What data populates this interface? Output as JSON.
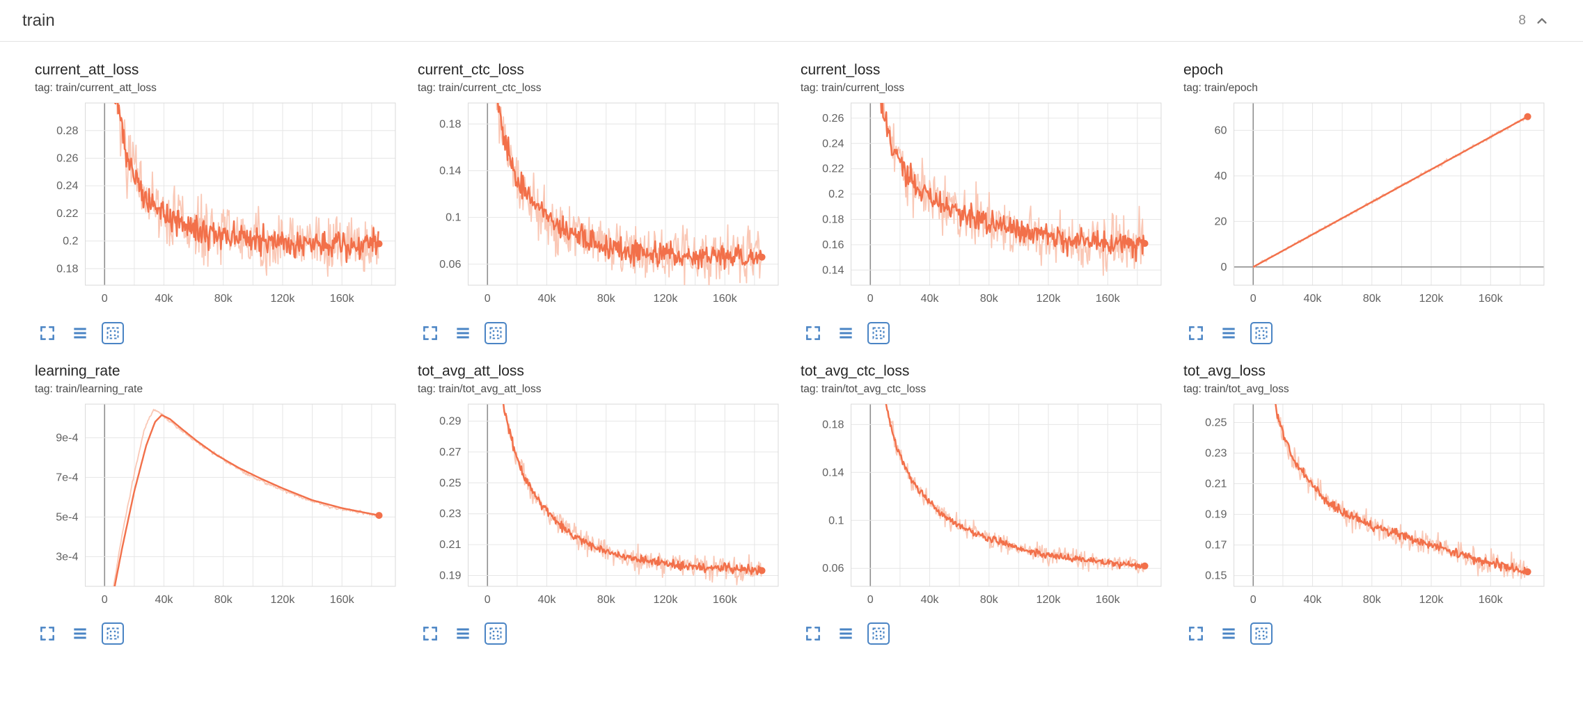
{
  "header": {
    "title": "train",
    "count": "8"
  },
  "colors": {
    "line": "#f2704a",
    "raw": "#f9c2ae",
    "axis_text": "#616161",
    "grid": "#e6e6e6",
    "axis_line": "#8f8f8f",
    "plot_border": "#dadada",
    "icon_blue": "#4a84c4",
    "chevron_gray": "#757575"
  },
  "toolbar_icons": [
    {
      "name": "maximize-icon",
      "active": false
    },
    {
      "name": "data-table-icon",
      "active": false
    },
    {
      "name": "fit-domain-icon",
      "active": true
    }
  ],
  "chart_data": [
    {
      "type": "line",
      "title": "current_att_loss",
      "tag": "tag: train/current_att_loss",
      "xlim": [
        -13000,
        196000
      ],
      "xgrid_step": 20000,
      "xticks": [
        0,
        40000,
        80000,
        120000,
        160000
      ],
      "xtick_labels": [
        "0",
        "40k",
        "80k",
        "120k",
        "160k"
      ],
      "ylim": [
        0.168,
        0.3
      ],
      "yticks": [
        0.18,
        0.2,
        0.22,
        0.24,
        0.26,
        0.28
      ],
      "ytick_labels": [
        "0.18",
        "0.2",
        "0.22",
        "0.24",
        "0.26",
        "0.28"
      ],
      "x_start": 2500,
      "x_end": 185000,
      "trend": [
        [
          3000,
          0.34
        ],
        [
          8000,
          0.3
        ],
        [
          15000,
          0.26
        ],
        [
          25000,
          0.235
        ],
        [
          40000,
          0.218
        ],
        [
          60000,
          0.208
        ],
        [
          90000,
          0.202
        ],
        [
          130000,
          0.199
        ],
        [
          185000,
          0.198
        ]
      ],
      "raw_noise": 0.012,
      "smooth_noise": 0.005,
      "seed": 7,
      "end_dot": true
    },
    {
      "type": "line",
      "title": "current_ctc_loss",
      "tag": "tag: train/current_ctc_loss",
      "xlim": [
        -13000,
        196000
      ],
      "xgrid_step": 20000,
      "xticks": [
        0,
        40000,
        80000,
        120000,
        160000
      ],
      "xtick_labels": [
        "0",
        "40k",
        "80k",
        "120k",
        "160k"
      ],
      "ylim": [
        0.042,
        0.198
      ],
      "yticks": [
        0.06,
        0.1,
        0.14,
        0.18
      ],
      "ytick_labels": [
        "0.06",
        "0.1",
        "0.14",
        "0.18"
      ],
      "x_start": 2500,
      "x_end": 185000,
      "trend": [
        [
          3000,
          0.26
        ],
        [
          8000,
          0.185
        ],
        [
          15000,
          0.15
        ],
        [
          20000,
          0.13
        ],
        [
          30000,
          0.115
        ],
        [
          40000,
          0.1
        ],
        [
          50000,
          0.09
        ],
        [
          60000,
          0.085
        ],
        [
          80000,
          0.075
        ],
        [
          100000,
          0.071
        ],
        [
          130000,
          0.068
        ],
        [
          185000,
          0.066
        ]
      ],
      "raw_noise": 0.011,
      "smooth_noise": 0.005,
      "seed": 13,
      "end_dot": true
    },
    {
      "type": "line",
      "title": "current_loss",
      "tag": "tag: train/current_loss",
      "xlim": [
        -13000,
        196000
      ],
      "xgrid_step": 20000,
      "xticks": [
        0,
        40000,
        80000,
        120000,
        160000
      ],
      "xtick_labels": [
        "0",
        "40k",
        "80k",
        "120k",
        "160k"
      ],
      "ylim": [
        0.128,
        0.272
      ],
      "yticks": [
        0.14,
        0.16,
        0.18,
        0.2,
        0.22,
        0.24,
        0.26
      ],
      "ytick_labels": [
        "0.14",
        "0.16",
        "0.18",
        "0.2",
        "0.22",
        "0.24",
        "0.26"
      ],
      "x_start": 2500,
      "x_end": 185000,
      "trend": [
        [
          3000,
          0.32
        ],
        [
          8000,
          0.27
        ],
        [
          15000,
          0.235
        ],
        [
          25000,
          0.215
        ],
        [
          40000,
          0.198
        ],
        [
          60000,
          0.185
        ],
        [
          80000,
          0.176
        ],
        [
          100000,
          0.17
        ],
        [
          130000,
          0.164
        ],
        [
          160000,
          0.161
        ],
        [
          185000,
          0.161
        ]
      ],
      "raw_noise": 0.011,
      "smooth_noise": 0.005,
      "seed": 21,
      "end_dot": true
    },
    {
      "type": "line",
      "title": "epoch",
      "tag": "tag: train/epoch",
      "xlim": [
        -13000,
        196000
      ],
      "xgrid_step": 20000,
      "xticks": [
        0,
        40000,
        80000,
        120000,
        160000
      ],
      "xtick_labels": [
        "0",
        "40k",
        "80k",
        "120k",
        "160k"
      ],
      "ylim": [
        -8,
        72
      ],
      "yticks": [
        0,
        20,
        40,
        60
      ],
      "ytick_labels": [
        "0",
        "20",
        "40",
        "60"
      ],
      "x_start": 0,
      "x_end": 185000,
      "trend": [
        [
          0,
          0
        ],
        [
          185000,
          66
        ]
      ],
      "raw_noise": 0.4,
      "smooth_noise": 0,
      "seed": 1,
      "end_dot": true
    },
    {
      "type": "line",
      "title": "learning_rate",
      "tag": "tag: train/learning_rate",
      "xlim": [
        -13000,
        196000
      ],
      "xgrid_step": 20000,
      "xticks": [
        0,
        40000,
        80000,
        120000,
        160000
      ],
      "xtick_labels": [
        "0",
        "40k",
        "80k",
        "120k",
        "160k"
      ],
      "ylim": [
        0.00015,
        0.00107
      ],
      "yticks": [
        0.0003,
        0.0005,
        0.0007,
        0.0009
      ],
      "ytick_labels": [
        "3e-4",
        "5e-4",
        "7e-4",
        "9e-4"
      ],
      "x_start": 5000,
      "x_end": 185000,
      "trend": [
        [
          5000,
          8e-05
        ],
        [
          12000,
          0.00035
        ],
        [
          20000,
          0.00063
        ],
        [
          28000,
          0.00086
        ],
        [
          34000,
          0.00098
        ],
        [
          38500,
          0.001015
        ],
        [
          44000,
          0.000995
        ],
        [
          52000,
          0.000945
        ],
        [
          62000,
          0.000885
        ],
        [
          75000,
          0.000815
        ],
        [
          90000,
          0.00075
        ],
        [
          105000,
          0.000695
        ],
        [
          120000,
          0.000645
        ],
        [
          140000,
          0.000585
        ],
        [
          160000,
          0.000545
        ],
        [
          185000,
          0.000508
        ]
      ],
      "raw_trend": [
        [
          5000,
          0.0001
        ],
        [
          12000,
          0.00042
        ],
        [
          20000,
          0.00072
        ],
        [
          27000,
          0.00095
        ],
        [
          33000,
          0.001045
        ],
        [
          38000,
          0.00102
        ],
        [
          46000,
          0.00097
        ],
        [
          60000,
          0.00089
        ],
        [
          80000,
          0.00079
        ],
        [
          100000,
          0.0007
        ],
        [
          125000,
          0.00062
        ],
        [
          150000,
          0.000555
        ],
        [
          185000,
          0.000505
        ]
      ],
      "raw_noise": 4e-06,
      "smooth_noise": 0,
      "seed": 2,
      "end_dot": true
    },
    {
      "type": "line",
      "title": "tot_avg_att_loss",
      "tag": "tag: train/tot_avg_att_loss",
      "xlim": [
        -13000,
        196000
      ],
      "xgrid_step": 20000,
      "xticks": [
        0,
        40000,
        80000,
        120000,
        160000
      ],
      "xtick_labels": [
        "0",
        "40k",
        "80k",
        "120k",
        "160k"
      ],
      "ylim": [
        0.183,
        0.301
      ],
      "yticks": [
        0.19,
        0.21,
        0.23,
        0.25,
        0.27,
        0.29
      ],
      "ytick_labels": [
        "0.19",
        "0.21",
        "0.23",
        "0.25",
        "0.27",
        "0.29"
      ],
      "x_start": 2500,
      "x_end": 185000,
      "trend": [
        [
          3000,
          0.36
        ],
        [
          8000,
          0.315
        ],
        [
          12000,
          0.295
        ],
        [
          18000,
          0.272
        ],
        [
          25000,
          0.254
        ],
        [
          32000,
          0.242
        ],
        [
          40000,
          0.232
        ],
        [
          50000,
          0.222
        ],
        [
          60000,
          0.2145
        ],
        [
          70000,
          0.209
        ],
        [
          80000,
          0.2055
        ],
        [
          95000,
          0.2015
        ],
        [
          110000,
          0.199
        ],
        [
          130000,
          0.1965
        ],
        [
          155000,
          0.1945
        ],
        [
          185000,
          0.1932
        ]
      ],
      "raw_noise": 0.004,
      "smooth_noise": 0.0015,
      "seed": 31,
      "end_dot": true
    },
    {
      "type": "line",
      "title": "tot_avg_ctc_loss",
      "tag": "tag: train/tot_avg_ctc_loss",
      "xlim": [
        -13000,
        196000
      ],
      "xgrid_step": 20000,
      "xticks": [
        0,
        40000,
        80000,
        120000,
        160000
      ],
      "xtick_labels": [
        "0",
        "40k",
        "80k",
        "120k",
        "160k"
      ],
      "ylim": [
        0.045,
        0.197
      ],
      "yticks": [
        0.06,
        0.1,
        0.14,
        0.18
      ],
      "ytick_labels": [
        "0.06",
        "0.1",
        "0.14",
        "0.18"
      ],
      "x_start": 2500,
      "x_end": 185000,
      "trend": [
        [
          3000,
          0.27
        ],
        [
          8000,
          0.215
        ],
        [
          12000,
          0.188
        ],
        [
          18000,
          0.16
        ],
        [
          25000,
          0.14
        ],
        [
          32000,
          0.126
        ],
        [
          40000,
          0.1145
        ],
        [
          50000,
          0.1035
        ],
        [
          60000,
          0.0955
        ],
        [
          70000,
          0.0895
        ],
        [
          80000,
          0.085
        ],
        [
          95000,
          0.0785
        ],
        [
          110000,
          0.0735
        ],
        [
          130000,
          0.0695
        ],
        [
          155000,
          0.0655
        ],
        [
          185000,
          0.062
        ]
      ],
      "raw_noise": 0.004,
      "smooth_noise": 0.0015,
      "seed": 41,
      "end_dot": true
    },
    {
      "type": "line",
      "title": "tot_avg_loss",
      "tag": "tag: train/tot_avg_loss",
      "xlim": [
        -13000,
        196000
      ],
      "xgrid_step": 20000,
      "xticks": [
        0,
        40000,
        80000,
        120000,
        160000
      ],
      "xtick_labels": [
        "0",
        "40k",
        "80k",
        "120k",
        "160k"
      ],
      "ylim": [
        0.143,
        0.262
      ],
      "yticks": [
        0.15,
        0.17,
        0.19,
        0.21,
        0.23,
        0.25
      ],
      "ytick_labels": [
        "0.15",
        "0.17",
        "0.19",
        "0.21",
        "0.23",
        "0.25"
      ],
      "x_start": 2500,
      "x_end": 185000,
      "trend": [
        [
          3000,
          0.33
        ],
        [
          8000,
          0.295
        ],
        [
          12000,
          0.272
        ],
        [
          18000,
          0.249
        ],
        [
          25000,
          0.231
        ],
        [
          32000,
          0.2185
        ],
        [
          40000,
          0.2085
        ],
        [
          50000,
          0.199
        ],
        [
          60000,
          0.1915
        ],
        [
          70000,
          0.1865
        ],
        [
          80000,
          0.1825
        ],
        [
          95000,
          0.1775
        ],
        [
          110000,
          0.173
        ],
        [
          130000,
          0.167
        ],
        [
          155000,
          0.159
        ],
        [
          185000,
          0.1525
        ]
      ],
      "raw_noise": 0.004,
      "smooth_noise": 0.0015,
      "seed": 51,
      "end_dot": true
    }
  ]
}
